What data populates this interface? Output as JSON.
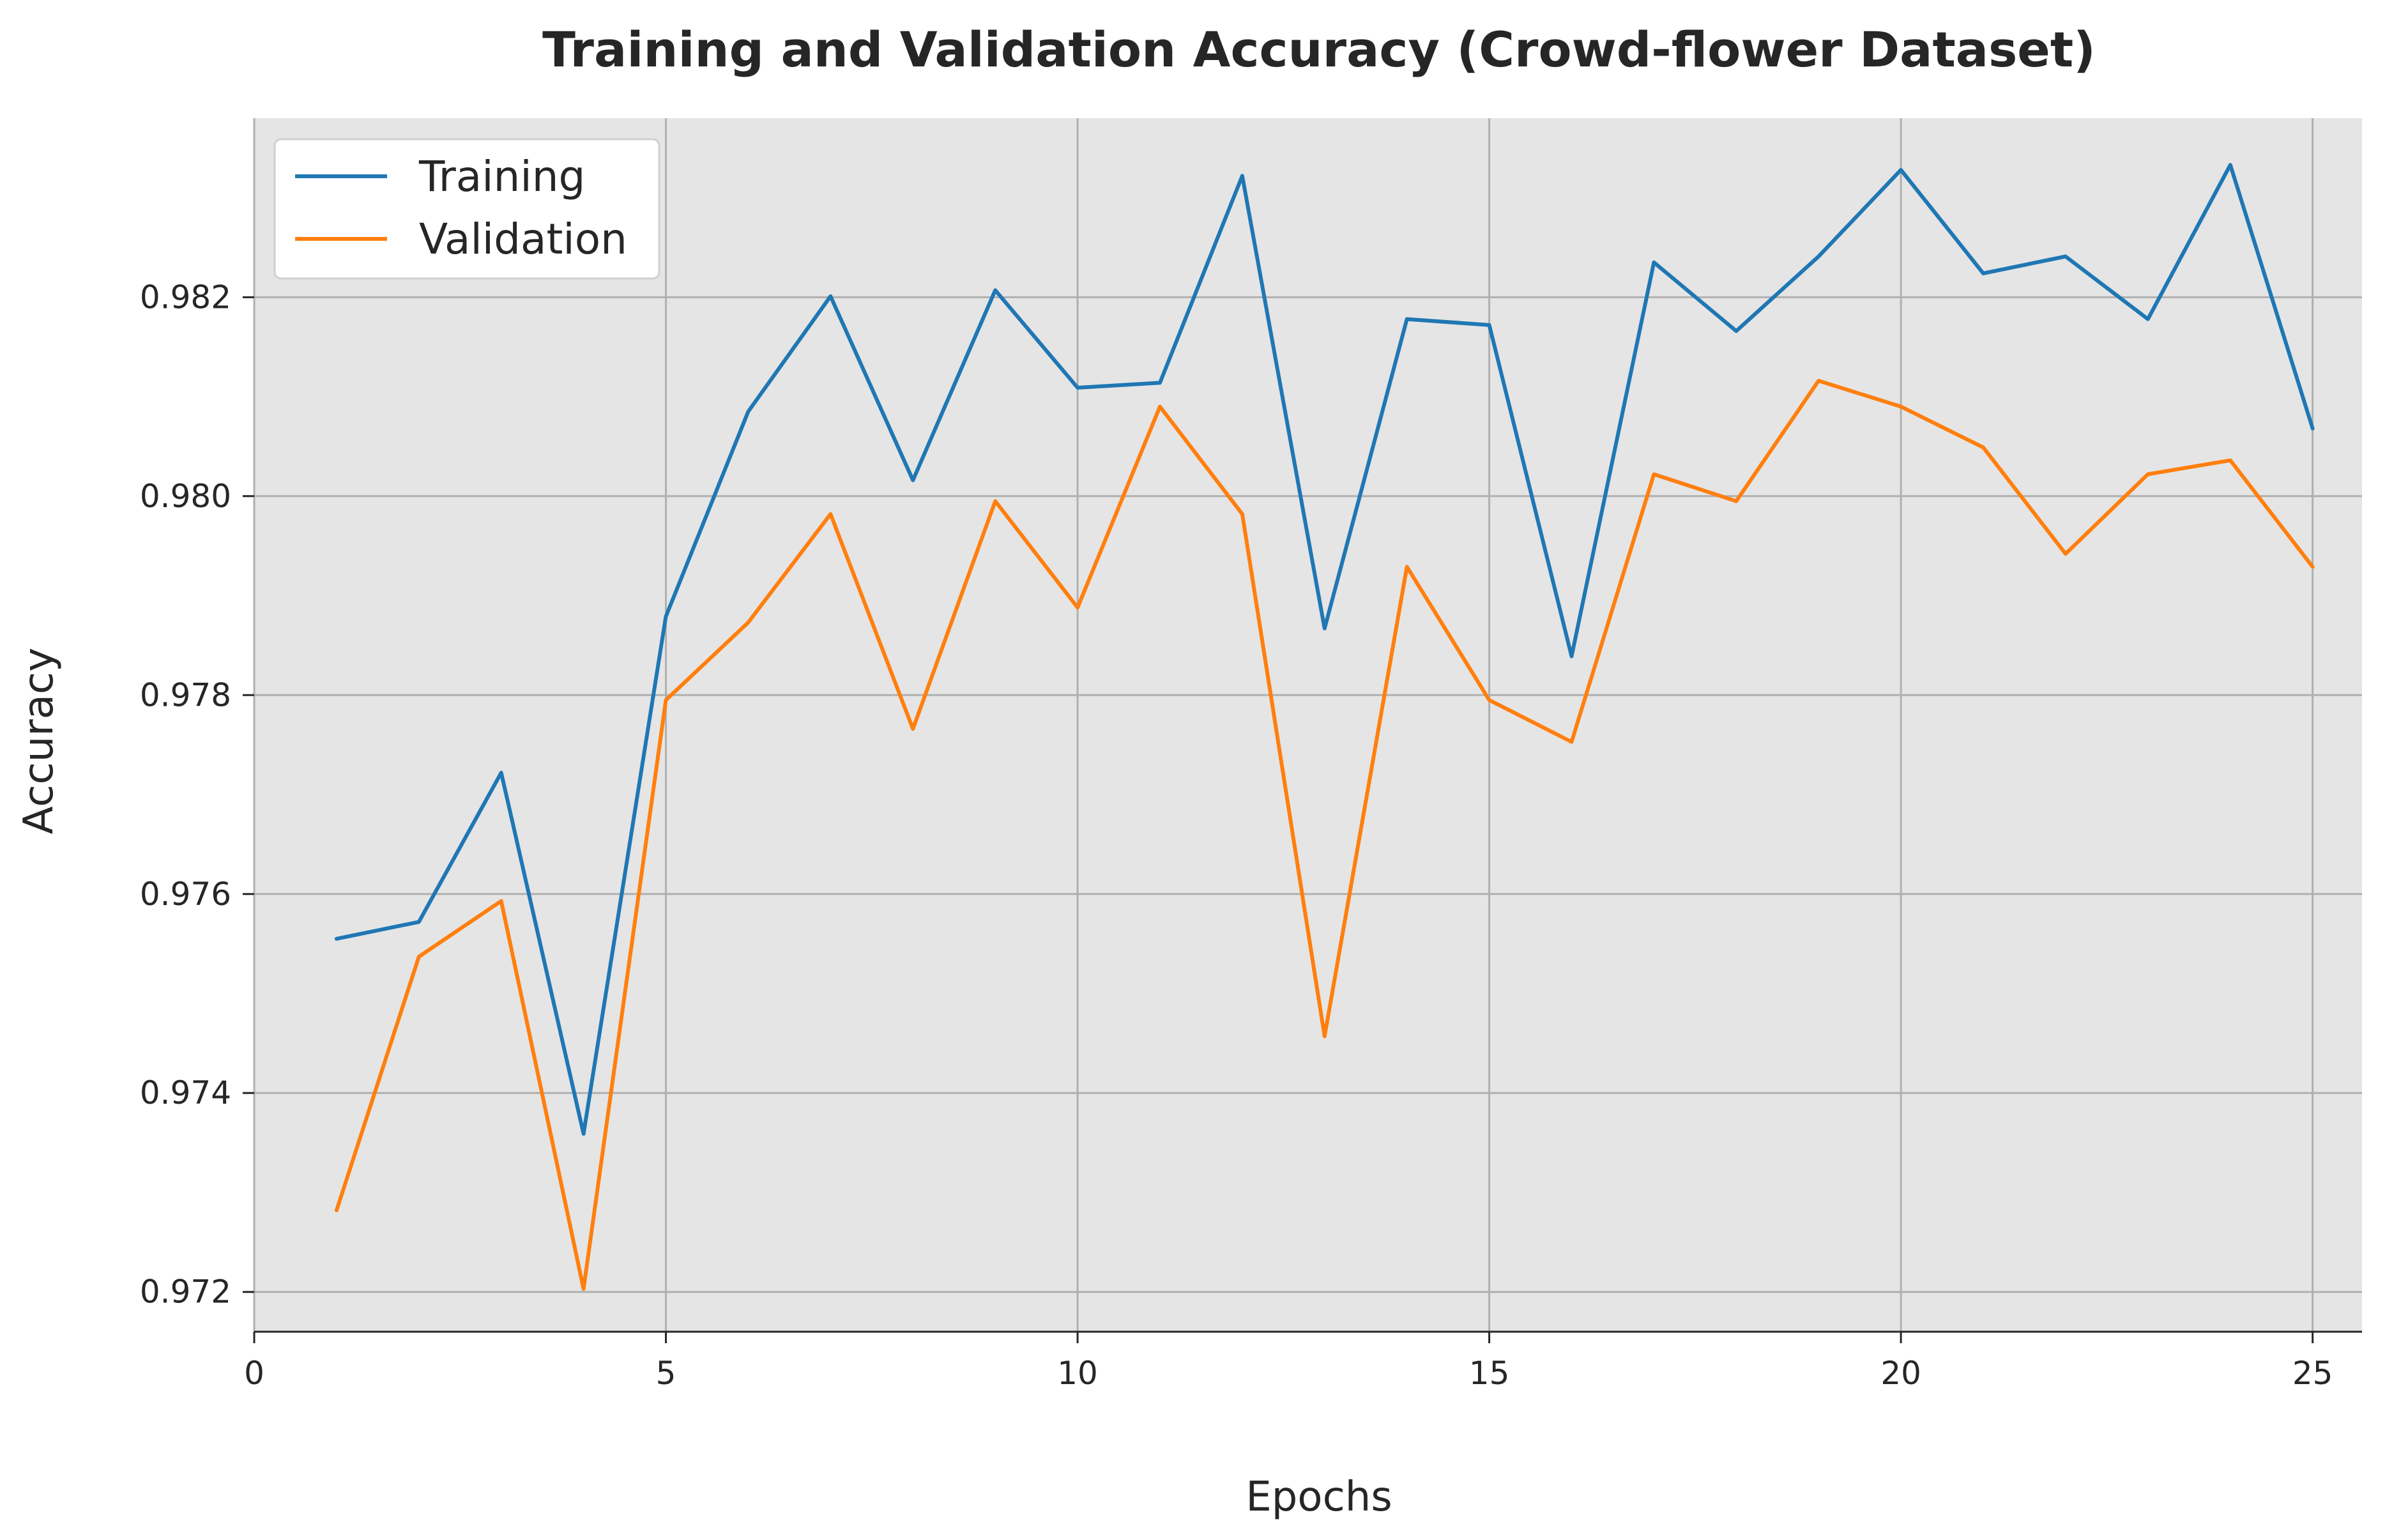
{
  "chart_data": {
    "type": "line",
    "title": "Training and Validation Accuracy (Crowd-flower Dataset)",
    "xlabel": "Epochs",
    "ylabel": "Accuracy",
    "xlim": [
      0,
      25.6
    ],
    "ylim": [
      0.9716,
      0.9838
    ],
    "xticks": [
      0,
      5,
      10,
      15,
      20,
      25
    ],
    "yticks": [
      0.972,
      0.974,
      0.976,
      0.978,
      0.98,
      0.982
    ],
    "ytick_labels": [
      "0.972",
      "0.974",
      "0.976",
      "0.978",
      "0.980",
      "0.982"
    ],
    "grid": true,
    "legend_position": "top-left",
    "background_color": "#e5e5e5",
    "grid_color": "#b0b0b0",
    "x": [
      1,
      2,
      3,
      4,
      5,
      6,
      7,
      8,
      9,
      10,
      11,
      12,
      13,
      14,
      15,
      16,
      17,
      18,
      19,
      20,
      21,
      22,
      23,
      24,
      25
    ],
    "series": [
      {
        "name": "Training",
        "color": "#1f77b4",
        "values": [
          0.97555,
          0.97572,
          0.97722,
          0.97359,
          0.97879,
          0.98085,
          0.98201,
          0.98016,
          0.98207,
          0.98109,
          0.98114,
          0.98322,
          0.97867,
          0.98178,
          0.98172,
          0.97839,
          0.98235,
          0.98166,
          0.98241,
          0.98328,
          0.98224,
          0.98241,
          0.98178,
          0.98333,
          0.98068
        ]
      },
      {
        "name": "Validation",
        "color": "#ff7f0e",
        "values": [
          0.97282,
          0.97537,
          0.97593,
          0.97203,
          0.97795,
          0.97873,
          0.97982,
          0.97766,
          0.97995,
          0.97888,
          0.9809,
          0.97982,
          0.97457,
          0.97929,
          0.97795,
          0.97753,
          0.98022,
          0.97995,
          0.98116,
          0.9809,
          0.98049,
          0.97942,
          0.98022,
          0.98036,
          0.97929
        ]
      }
    ]
  }
}
